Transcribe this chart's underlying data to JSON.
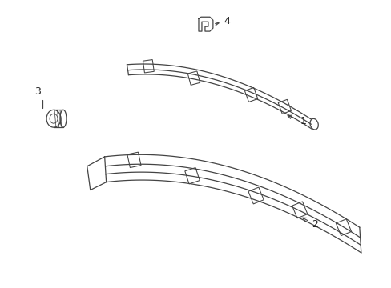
{
  "background_color": "#ffffff",
  "line_color": "#444444",
  "text_color": "#222222",
  "fig_width": 4.89,
  "fig_height": 3.6,
  "dpi": 100
}
